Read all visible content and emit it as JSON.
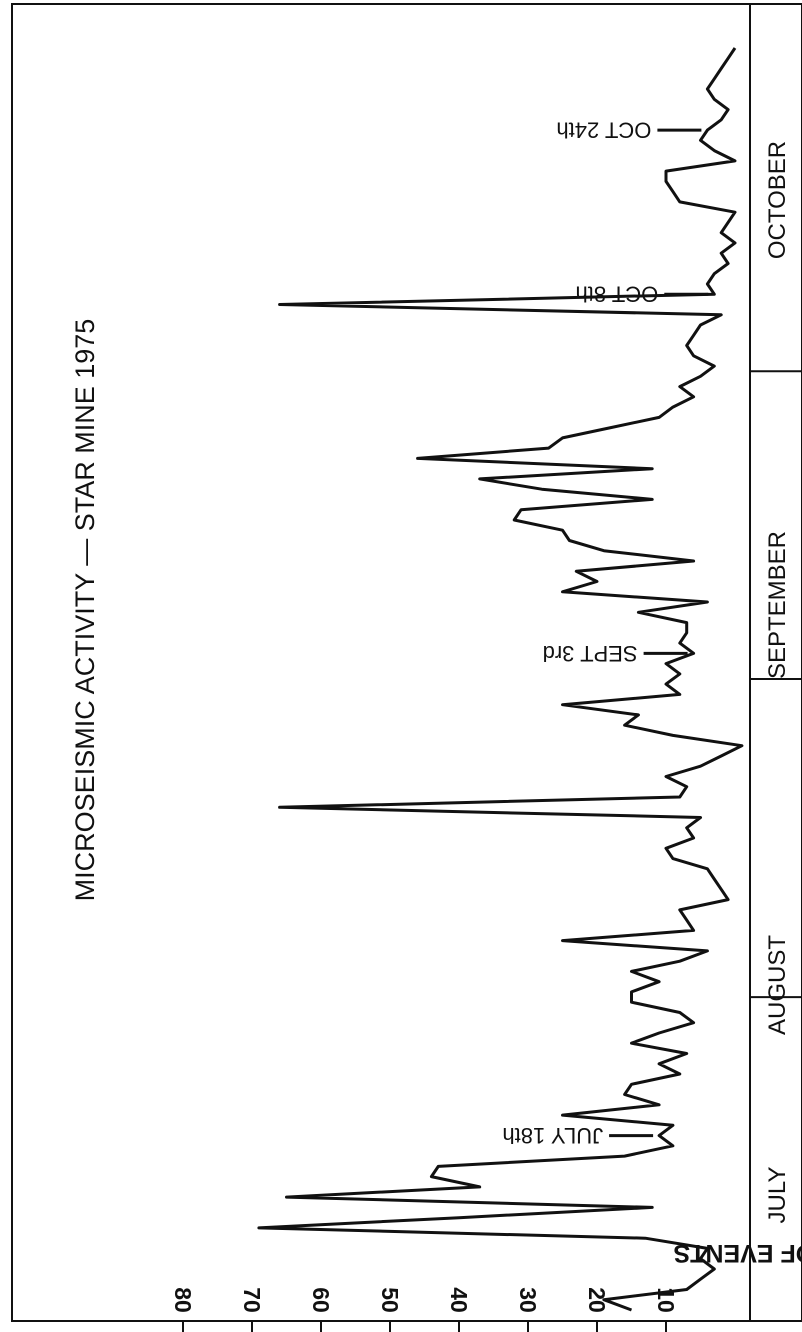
{
  "chart_data": {
    "type": "line",
    "title": "MICROSEISMIC ACTIVITY — STAR MINE 1975",
    "ylabel": "NO. OF EVENTS",
    "ylim": [
      0,
      80
    ],
    "yticks": [
      "10",
      "20",
      "30",
      "40",
      "50",
      "60",
      "70",
      "80"
    ],
    "grid": false,
    "months": [
      "JULY",
      "AUGUST",
      "SEPTEMBER",
      "OCTOBER"
    ],
    "annotations": [
      {
        "label": "JULY 18th",
        "day": 18
      },
      {
        "label": "SEPT 3rd",
        "day": 65
      },
      {
        "label": "OCT 8th",
        "day": 100
      },
      {
        "label": "OCT 24th",
        "day": 116
      }
    ],
    "series": [
      {
        "x": [
          1,
          2,
          3,
          4,
          5,
          6,
          7,
          8,
          9,
          10,
          11,
          12,
          13,
          14,
          15,
          16,
          17,
          18,
          19,
          20,
          21,
          22,
          23,
          24,
          25,
          26,
          27,
          28,
          29,
          30,
          31,
          32,
          33,
          34,
          35,
          36,
          37,
          38,
          39,
          40,
          41,
          42,
          43,
          44,
          45,
          46,
          47,
          48,
          49,
          50,
          51,
          52,
          53,
          54,
          55,
          56,
          57,
          58,
          59,
          60,
          61,
          62,
          63,
          64,
          65,
          66,
          67,
          68,
          69,
          70,
          71,
          72,
          73,
          74,
          75,
          76,
          77,
          78,
          79,
          80,
          81,
          82,
          83,
          84,
          85,
          86,
          87,
          88,
          89,
          90,
          91,
          92,
          93,
          94,
          95,
          96,
          97,
          98,
          99,
          100,
          101,
          102,
          103,
          104,
          105,
          106,
          107,
          108,
          109,
          110,
          111,
          112,
          113,
          114,
          115,
          116,
          117,
          118,
          119,
          120,
          121,
          122,
          123,
          124
        ],
        "y": [
          15,
          19,
          7,
          5,
          3,
          5,
          4,
          13,
          69,
          40,
          12,
          65,
          37,
          44,
          43,
          16,
          9,
          11,
          9,
          25,
          11,
          16,
          15,
          8,
          11,
          7,
          15,
          11,
          6,
          8,
          15,
          15,
          11,
          15,
          8,
          4,
          25,
          6,
          7,
          8,
          1,
          2,
          3,
          4,
          9,
          10,
          6,
          7,
          5,
          66,
          8,
          7,
          10,
          5,
          2,
          -1,
          9,
          16,
          14,
          25,
          8,
          10,
          8,
          10,
          6,
          8,
          7,
          7,
          14,
          4,
          25,
          20,
          23,
          6,
          19,
          24,
          25,
          32,
          31,
          12,
          28,
          37,
          12,
          46,
          27,
          25,
          18,
          11,
          9,
          6,
          8,
          5,
          3,
          6,
          7,
          6,
          5,
          2,
          66,
          3,
          4,
          3,
          1,
          2,
          0,
          2,
          1,
          0,
          8,
          9,
          10,
          10,
          0,
          3,
          5,
          4,
          2,
          1,
          3,
          4,
          3,
          2,
          1,
          0
        ]
      }
    ]
  }
}
